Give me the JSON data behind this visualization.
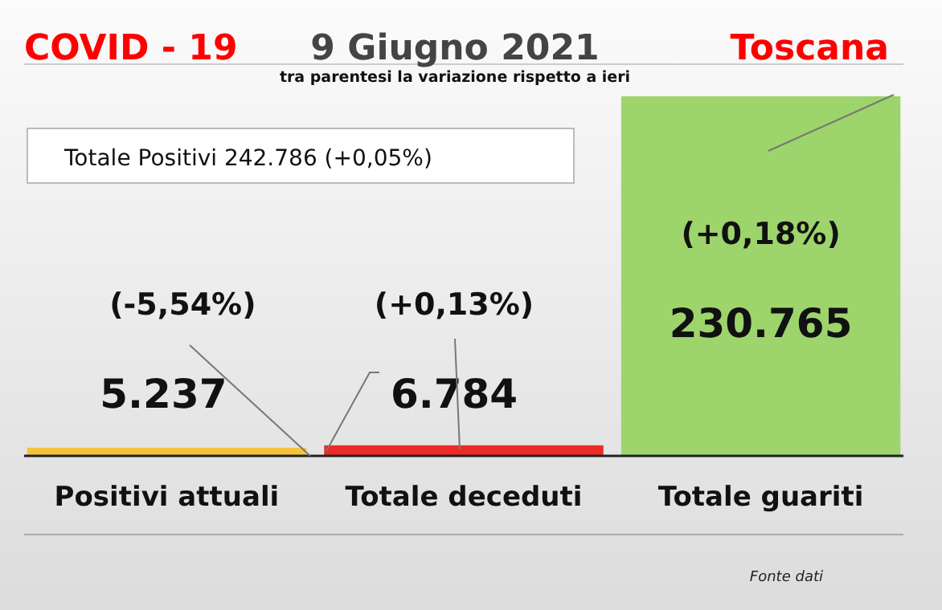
{
  "chart_data": {
    "type": "bar",
    "title": "9 Giugno 2021",
    "subtitle": "tra parentesi la variazione rispetto a ieri",
    "categories": [
      "Positivi attuali",
      "Totale deceduti",
      "Totale guariti"
    ],
    "values": [
      5237,
      6784,
      230765
    ],
    "colors": [
      "#f5c33b",
      "#ee2a24",
      "#9dd46c"
    ],
    "value_labels": [
      "5.237",
      "6.784",
      "230.765"
    ],
    "annotations": [
      "COVID - 19",
      "Toscana",
      "Totale Positivi 242.786 (+0,05%)",
      "(-5,54%)",
      "(+0,13%)",
      "(+0,18%)",
      "Fonte dati"
    ]
  }
}
